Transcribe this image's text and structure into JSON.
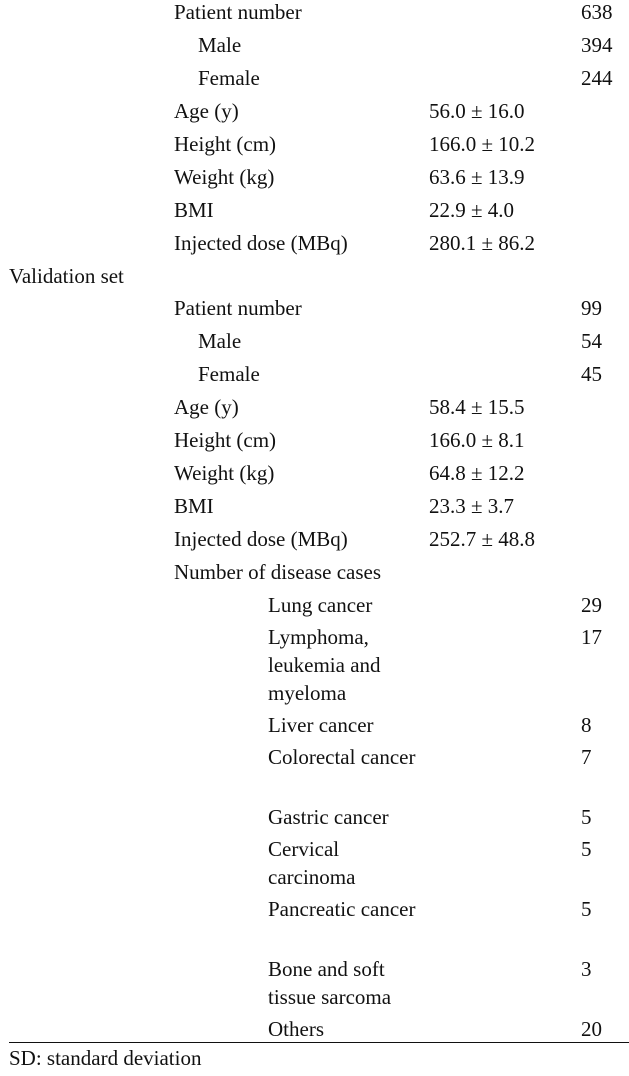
{
  "training_rows": [
    {
      "label": "Patient number",
      "mean": "",
      "count": "638",
      "kind": "label"
    },
    {
      "label": "Male",
      "mean": "",
      "count": "394",
      "kind": "sub"
    },
    {
      "label": "Female",
      "mean": "",
      "count": "244",
      "kind": "sub"
    },
    {
      "label": "Age (y)",
      "mean": "56.0 ± 16.0",
      "count": "",
      "kind": "label"
    },
    {
      "label": "Height (cm)",
      "mean": "166.0 ± 10.2",
      "count": "",
      "kind": "label"
    },
    {
      "label": "Weight (kg)",
      "mean": "63.6 ± 13.9",
      "count": "",
      "kind": "label"
    },
    {
      "label": "BMI",
      "mean": "22.9 ± 4.0",
      "count": "",
      "kind": "label"
    },
    {
      "label": "Injected dose (MBq)",
      "mean": "280.1 ± 86.2",
      "count": "",
      "kind": "label"
    }
  ],
  "validation_header": "Validation set",
  "validation_rows": [
    {
      "label": "Patient number",
      "mean": "",
      "count": "99",
      "kind": "label"
    },
    {
      "label": "Male",
      "mean": "",
      "count": "54",
      "kind": "sub"
    },
    {
      "label": "Female",
      "mean": "",
      "count": "45",
      "kind": "sub"
    },
    {
      "label": "Age (y)",
      "mean": "58.4 ± 15.5",
      "count": "",
      "kind": "label"
    },
    {
      "label": "Height (cm)",
      "mean": "166.0 ± 8.1",
      "count": "",
      "kind": "label"
    },
    {
      "label": "Weight (kg)",
      "mean": "64.8 ± 12.2",
      "count": "",
      "kind": "label"
    },
    {
      "label": "BMI",
      "mean": "23.3 ± 3.7",
      "count": "",
      "kind": "label"
    },
    {
      "label": "Injected dose (MBq)",
      "mean": "252.7 ± 48.8",
      "count": "",
      "kind": "label"
    }
  ],
  "disease_header": "Number of disease cases",
  "disease_rows": [
    {
      "label": "Lung cancer",
      "count": "29"
    },
    {
      "label": "Lymphoma, leukemia and myeloma",
      "count": "17"
    },
    {
      "label": "Liver cancer",
      "count": "8"
    },
    {
      "label": "Colorectal cancer",
      "count": "7"
    },
    {
      "label": "Gastric cancer",
      "count": "5"
    },
    {
      "label": "Cervical carcinoma",
      "count": "5"
    },
    {
      "label": "Pancreatic cancer",
      "count": "5"
    },
    {
      "label": "Bone and soft tissue sarcoma",
      "count": "3"
    },
    {
      "label": "Others",
      "count": "20"
    }
  ],
  "footnote": "SD: standard deviation"
}
